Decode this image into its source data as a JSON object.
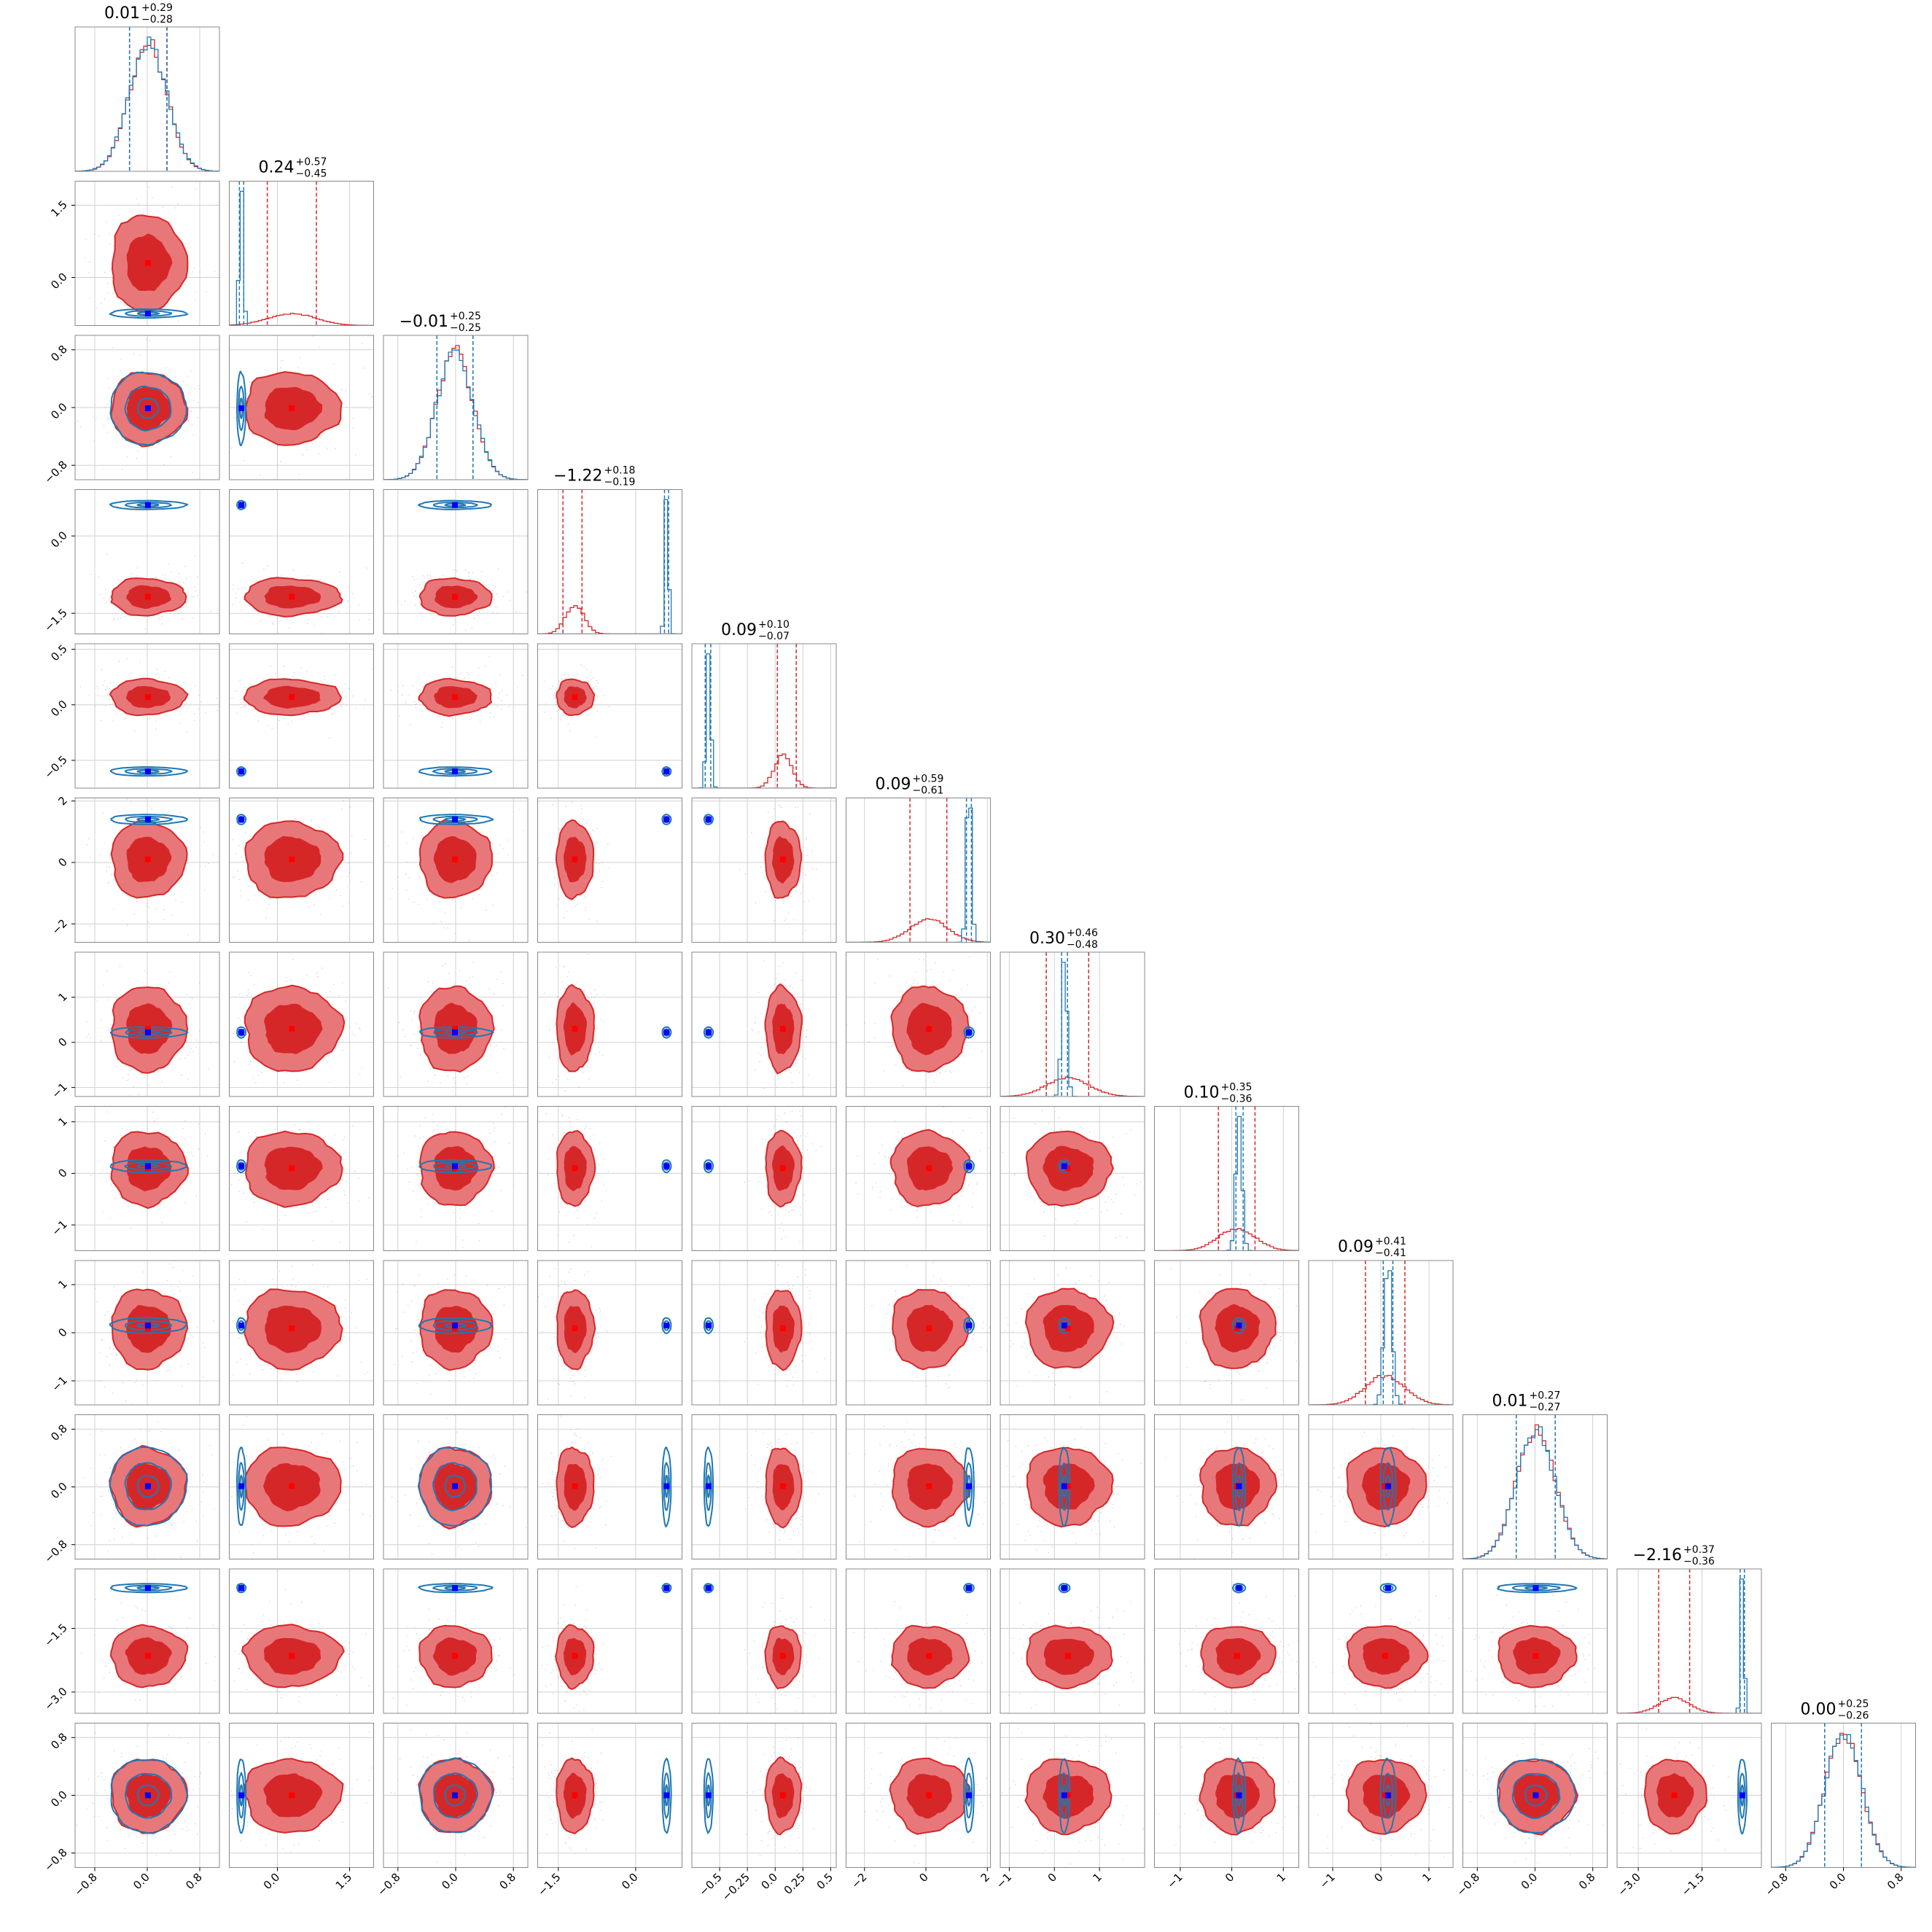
{
  "chart_data": {
    "type": "corner",
    "n_params": 12,
    "colors": {
      "model_a": "#d62728",
      "model_a_fill": "#e8777a",
      "model_b": "#1f77b4",
      "truth_a": "#ff0000",
      "truth_b": "#0000ff",
      "grid": "#d0d0d0",
      "axes": "#888888"
    },
    "series": [
      {
        "color": "red",
        "style": "filled-contours"
      },
      {
        "color": "blue",
        "style": "line-contours"
      }
    ],
    "params": [
      {
        "title": "0.01",
        "plus": "+0.29",
        "minus": "−0.28",
        "range": [
          -1.1,
          1.1
        ],
        "ticks": [
          -0.8,
          0.0,
          0.8
        ],
        "tick_labels": [
          "−0.8",
          "0.0",
          "0.8"
        ],
        "red": {
          "mu": 0.01,
          "sd": 0.285,
          "q": [
            -0.27,
            0.3
          ]
        },
        "blue": {
          "mu": 0.01,
          "sd": 0.29,
          "q": [
            -0.27,
            0.3
          ]
        }
      },
      {
        "title": "0.24",
        "plus": "+0.57",
        "minus": "−0.45",
        "range": [
          -1.0,
          2.0
        ],
        "ticks": [
          0.0,
          1.5
        ],
        "tick_labels": [
          "0.0",
          "1.5"
        ],
        "red": {
          "mu": 0.3,
          "sd": 0.5,
          "q": [
            -0.21,
            0.81
          ]
        },
        "blue": {
          "mu": -0.75,
          "sd": 0.04,
          "q": [
            -0.79,
            -0.7
          ]
        }
      },
      {
        "title": "−0.01",
        "plus": "+0.25",
        "minus": "−0.25",
        "range": [
          -1.0,
          1.0
        ],
        "ticks": [
          -0.8,
          0.0,
          0.8
        ],
        "tick_labels": [
          "−0.8",
          "0.0",
          "0.8"
        ],
        "red": {
          "mu": -0.01,
          "sd": 0.25,
          "q": [
            -0.26,
            0.24
          ]
        },
        "blue": {
          "mu": -0.01,
          "sd": 0.25,
          "q": [
            -0.26,
            0.24
          ]
        }
      },
      {
        "title": "−1.22",
        "plus": "+0.18",
        "minus": "−0.19",
        "range": [
          -1.9,
          0.9
        ],
        "ticks": [
          -1.5,
          0.0
        ],
        "tick_labels": [
          "−1.5",
          "0.0"
        ],
        "red": {
          "mu": -1.18,
          "sd": 0.18,
          "q": [
            -1.41,
            -1.04
          ]
        },
        "blue": {
          "mu": 0.6,
          "sd": 0.035,
          "q": [
            0.56,
            0.64
          ]
        }
      },
      {
        "title": "0.09",
        "plus": "+0.10",
        "minus": "−0.07",
        "range": [
          -0.75,
          0.55
        ],
        "ticks": [
          -0.5,
          0.0,
          0.5
        ],
        "tick_labels": [
          "−0.5",
          "0.0",
          "0.5"
        ],
        "tick_labels_x": [
          "−0.5",
          "−0.25",
          "0.0",
          "0.25",
          "0.5"
        ],
        "ticks_x": [
          -0.5,
          -0.25,
          0.0,
          0.25,
          0.5
        ],
        "red": {
          "mu": 0.07,
          "sd": 0.08,
          "q": [
            0.02,
            0.19
          ]
        },
        "blue": {
          "mu": -0.6,
          "sd": 0.02,
          "q": [
            -0.63,
            -0.58
          ]
        }
      },
      {
        "title": "0.09",
        "plus": "+0.59",
        "minus": "−0.61",
        "range": [
          -2.6,
          2.1
        ],
        "ticks": [
          -2.0,
          0.0,
          2.0
        ],
        "tick_labels": [
          "−2",
          "0",
          "2"
        ],
        "red": {
          "mu": 0.1,
          "sd": 0.62,
          "q": [
            -0.52,
            0.68
          ]
        },
        "blue": {
          "mu": 1.4,
          "sd": 0.08,
          "q": [
            1.32,
            1.48
          ]
        }
      },
      {
        "title": "0.30",
        "plus": "+0.46",
        "minus": "−0.48",
        "range": [
          -1.2,
          2.0
        ],
        "ticks": [
          -1.0,
          0.0,
          1.0
        ],
        "tick_labels": [
          "−1",
          "0",
          "1"
        ],
        "red": {
          "mu": 0.3,
          "sd": 0.47,
          "q": [
            -0.18,
            0.76
          ]
        },
        "blue": {
          "mu": 0.22,
          "sd": 0.06,
          "q": [
            0.16,
            0.29
          ]
        }
      },
      {
        "title": "0.10",
        "plus": "+0.35",
        "minus": "−0.36",
        "range": [
          -1.5,
          1.3
        ],
        "ticks": [
          -1.0,
          0.0,
          1.0
        ],
        "tick_labels": [
          "−1",
          "0",
          "1"
        ],
        "red": {
          "mu": 0.1,
          "sd": 0.36,
          "q": [
            -0.26,
            0.45
          ]
        },
        "blue": {
          "mu": 0.14,
          "sd": 0.06,
          "q": [
            0.08,
            0.22
          ]
        }
      },
      {
        "title": "0.09",
        "plus": "+0.41",
        "minus": "−0.41",
        "range": [
          -1.5,
          1.5
        ],
        "ticks": [
          -1.0,
          0.0,
          1.0
        ],
        "tick_labels": [
          "−1",
          "0",
          "1"
        ],
        "red": {
          "mu": 0.09,
          "sd": 0.41,
          "q": [
            -0.32,
            0.5
          ]
        },
        "blue": {
          "mu": 0.15,
          "sd": 0.08,
          "q": [
            0.05,
            0.25
          ]
        }
      },
      {
        "title": "0.01",
        "plus": "+0.27",
        "minus": "−0.27",
        "range": [
          -1.0,
          1.0
        ],
        "ticks": [
          -0.8,
          0.0,
          0.8
        ],
        "tick_labels": [
          "−0.8",
          "0.0",
          "0.8"
        ],
        "red": {
          "mu": 0.01,
          "sd": 0.27,
          "q": [
            -0.26,
            0.28
          ]
        },
        "blue": {
          "mu": 0.01,
          "sd": 0.27,
          "q": [
            -0.26,
            0.28
          ]
        }
      },
      {
        "title": "−2.16",
        "plus": "+0.37",
        "minus": "−0.36",
        "range": [
          -3.5,
          -0.1
        ],
        "ticks": [
          -3.0,
          -1.5
        ],
        "tick_labels": [
          "−3.0",
          "−1.5"
        ],
        "red": {
          "mu": -2.15,
          "sd": 0.36,
          "q": [
            -2.52,
            -1.79
          ]
        },
        "blue": {
          "mu": -0.55,
          "sd": 0.04,
          "q": [
            -0.6,
            -0.5
          ]
        }
      },
      {
        "title": "0.00",
        "plus": "+0.25",
        "minus": "−0.26",
        "range": [
          -1.0,
          1.0
        ],
        "ticks": [
          -0.8,
          0.0,
          0.8
        ],
        "tick_labels": [
          "−0.8",
          "0.0",
          "0.8"
        ],
        "red": {
          "mu": 0.0,
          "sd": 0.255,
          "q": [
            -0.26,
            0.25
          ]
        },
        "blue": {
          "mu": 0.0,
          "sd": 0.255,
          "q": [
            -0.26,
            0.25
          ]
        }
      }
    ]
  }
}
